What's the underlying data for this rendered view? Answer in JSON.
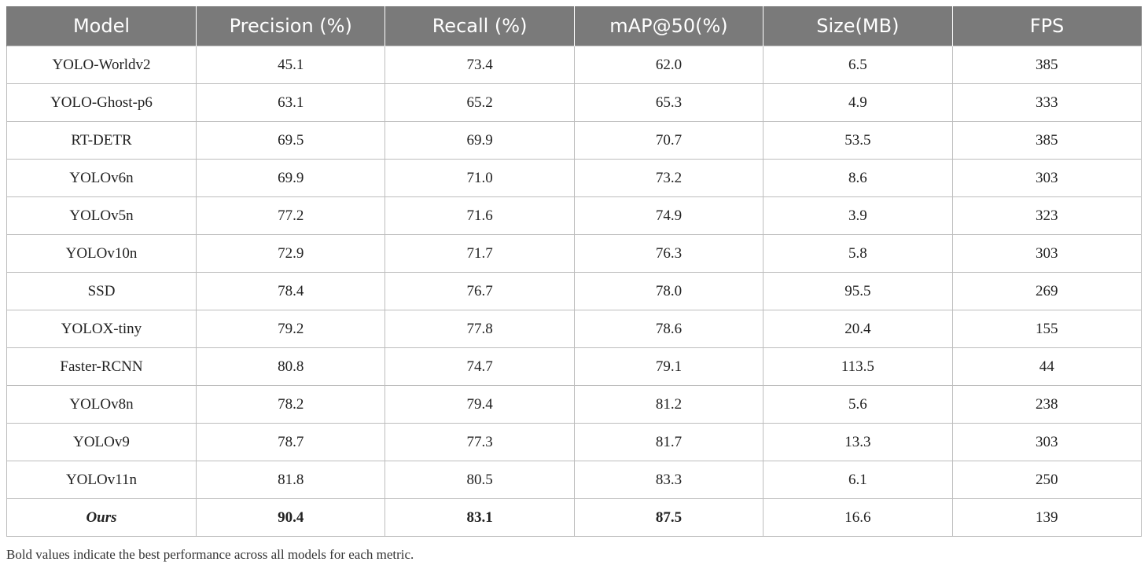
{
  "table": {
    "columns": [
      "Model",
      "Precision (%)",
      "Recall (%)",
      "mAP@50(%)",
      "Size(MB)",
      "FPS"
    ],
    "rows": [
      {
        "model": "YOLO-Worldv2",
        "precision": "45.1",
        "recall": "73.4",
        "map50": "62.0",
        "size": "6.5",
        "fps": "385"
      },
      {
        "model": "YOLO-Ghost-p6",
        "precision": "63.1",
        "recall": "65.2",
        "map50": "65.3",
        "size": "4.9",
        "fps": "333"
      },
      {
        "model": "RT-DETR",
        "precision": "69.5",
        "recall": "69.9",
        "map50": "70.7",
        "size": "53.5",
        "fps": "385"
      },
      {
        "model": "YOLOv6n",
        "precision": "69.9",
        "recall": "71.0",
        "map50": "73.2",
        "size": "8.6",
        "fps": "303"
      },
      {
        "model": "YOLOv5n",
        "precision": "77.2",
        "recall": "71.6",
        "map50": "74.9",
        "size": "3.9",
        "fps": "323"
      },
      {
        "model": "YOLOv10n",
        "precision": "72.9",
        "recall": "71.7",
        "map50": "76.3",
        "size": "5.8",
        "fps": "303"
      },
      {
        "model": "SSD",
        "precision": "78.4",
        "recall": "76.7",
        "map50": "78.0",
        "size": "95.5",
        "fps": "269"
      },
      {
        "model": "YOLOX-tiny",
        "precision": "79.2",
        "recall": "77.8",
        "map50": "78.6",
        "size": "20.4",
        "fps": "155"
      },
      {
        "model": "Faster-RCNN",
        "precision": "80.8",
        "recall": "74.7",
        "map50": "79.1",
        "size": "113.5",
        "fps": "44"
      },
      {
        "model": "YOLOv8n",
        "precision": "78.2",
        "recall": "79.4",
        "map50": "81.2",
        "size": "5.6",
        "fps": "238"
      },
      {
        "model": "YOLOv9",
        "precision": "78.7",
        "recall": "77.3",
        "map50": "81.7",
        "size": "13.3",
        "fps": "303"
      },
      {
        "model": "YOLOv11n",
        "precision": "81.8",
        "recall": "80.5",
        "map50": "83.3",
        "size": "6.1",
        "fps": "250"
      },
      {
        "model": "Ours",
        "precision": "90.4",
        "recall": "83.1",
        "map50": "87.5",
        "size": "16.6",
        "fps": "139",
        "highlight": true
      }
    ],
    "header_color": "#7a7a7a"
  },
  "footnote": "Bold values indicate the best performance across all models for each metric."
}
